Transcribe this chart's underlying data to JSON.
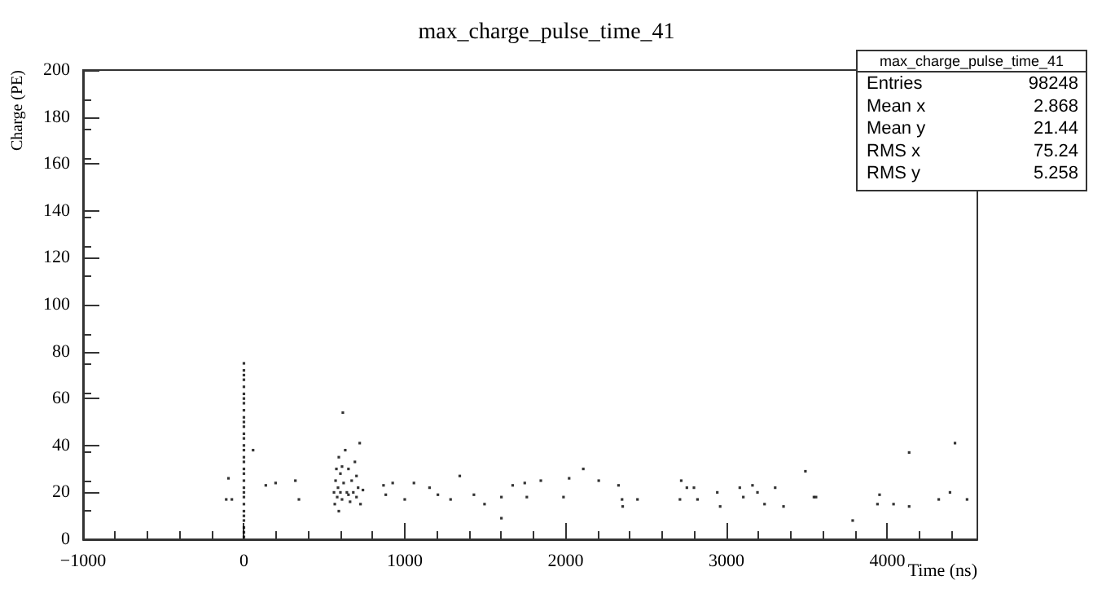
{
  "chart_data": {
    "type": "scatter",
    "title": "max_charge_pulse_time_41",
    "xlabel": "Time (ns)",
    "ylabel": "Charge (PE)",
    "annotations": [
      "max_charge_pulse_time_41",
      "Entries 98248",
      "Mean x 2.868",
      "Mean y 21.44",
      "RMS x 75.24",
      "RMS y 5.258"
    ],
    "xlim": [
      -1000,
      4560
    ],
    "xticks": [
      -1000,
      0,
      1000,
      2000,
      3000,
      4000
    ],
    "ylim": [
      0,
      200
    ],
    "yticks": [
      0,
      20,
      40,
      60,
      80,
      100,
      120,
      140,
      160,
      180,
      200
    ],
    "grid": false,
    "marker": "square",
    "series": [
      {
        "color": "#000000",
        "x": [
          0,
          0,
          0,
          0,
          0,
          0,
          0,
          0,
          0,
          0,
          0,
          0,
          0,
          0,
          0,
          0,
          0,
          0,
          0,
          0,
          0,
          0,
          0,
          0,
          0,
          0,
          0,
          0,
          0,
          0,
          0,
          560,
          565,
          570,
          575,
          580,
          585,
          590,
          600,
          610,
          615,
          620,
          630,
          640,
          650,
          660,
          670,
          680,
          690,
          700,
          710,
          720,
          725,
          590,
          600,
          610,
          650,
          700,
          740,
          -96,
          -110,
          -75,
          57,
          136,
          197,
          320,
          342,
          868,
          882,
          925,
          1000,
          1057,
          1154,
          1206,
          1285,
          1342,
          1430,
          1496,
          1601,
          1601,
          1671,
          1759,
          1746,
          1846,
          1987,
          2022,
          2110,
          2206,
          2329,
          2351,
          2355,
          2447,
          2719,
          2754,
          2798,
          2711,
          2820,
          2943,
          2961,
          3083,
          3105,
          3162,
          3193,
          3237,
          3303,
          3355,
          3491,
          3544,
          3557,
          3785,
          3939,
          3952,
          4039,
          4136,
          4136,
          4320,
          4390,
          4421,
          4496
        ],
        "values": [
          1,
          3,
          5,
          8,
          10,
          12,
          15,
          18,
          20,
          22,
          25,
          28,
          30,
          33,
          35,
          38,
          40,
          43,
          45,
          48,
          50,
          52,
          55,
          58,
          60,
          62,
          65,
          68,
          70,
          72,
          75,
          20,
          15,
          25,
          30,
          18,
          22,
          35,
          28,
          17,
          54,
          24,
          38,
          20,
          30,
          16,
          25,
          20,
          33,
          18,
          22,
          41,
          15,
          12,
          20,
          31,
          19,
          27,
          21,
          26,
          17,
          17,
          38,
          23,
          24,
          25,
          17,
          23,
          19,
          24,
          17,
          24,
          22,
          19,
          17,
          27,
          19,
          15,
          9,
          18,
          23,
          18,
          24,
          25,
          18,
          26,
          30,
          25,
          23,
          17,
          14,
          17,
          25,
          22,
          22,
          17,
          17,
          20,
          14,
          22,
          18,
          23,
          20,
          15,
          22,
          14,
          29,
          18,
          18,
          8,
          15,
          19,
          15,
          14,
          37,
          17,
          20,
          41,
          17
        ]
      }
    ]
  }
}
